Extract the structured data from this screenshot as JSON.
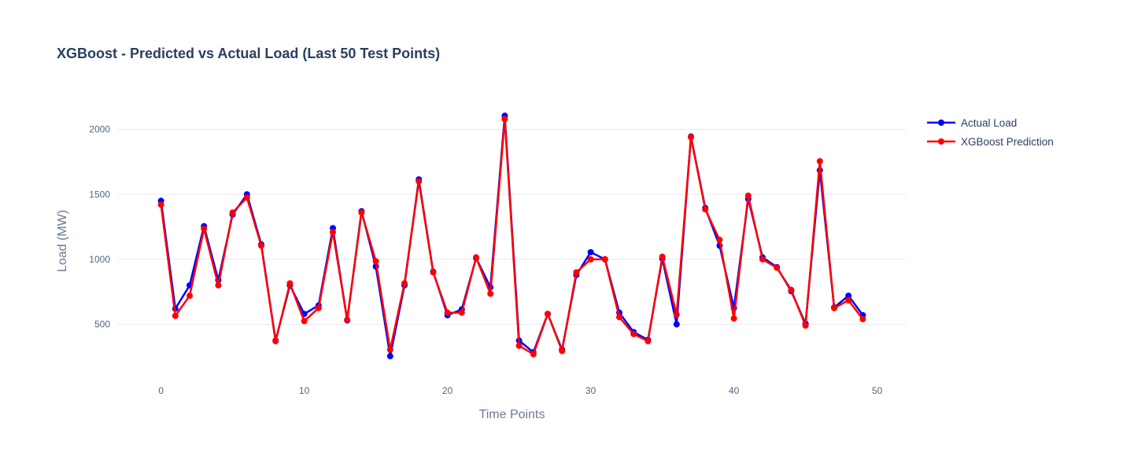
{
  "chart_data": {
    "type": "line",
    "title": "XGBoost - Predicted vs Actual Load (Last 50 Test Points)",
    "xlabel": "Time Points",
    "ylabel": "Load (MW)",
    "xlim": [
      -3,
      52
    ],
    "ylim": [
      80,
      2300
    ],
    "xticks": [
      0,
      10,
      20,
      30,
      40,
      50
    ],
    "yticks": [
      500,
      1000,
      1500,
      2000
    ],
    "grid": "horizontal",
    "legend_position": "top-right, outside plot",
    "x": [
      0,
      1,
      2,
      3,
      4,
      5,
      6,
      7,
      8,
      9,
      10,
      11,
      12,
      13,
      14,
      15,
      16,
      17,
      18,
      19,
      20,
      21,
      22,
      23,
      24,
      25,
      26,
      27,
      28,
      29,
      30,
      31,
      32,
      33,
      34,
      35,
      36,
      37,
      38,
      39,
      40,
      41,
      42,
      43,
      44,
      45,
      46,
      47,
      48,
      49
    ],
    "series": [
      {
        "name": "Actual Load",
        "color": "#0000ff",
        "values": [
          1450,
          620,
          800,
          1255,
          840,
          1345,
          1500,
          1115,
          375,
          800,
          580,
          645,
          1240,
          530,
          1370,
          945,
          255,
          800,
          1615,
          905,
          570,
          615,
          1010,
          785,
          2105,
          375,
          285,
          580,
          305,
          880,
          1055,
          1000,
          590,
          440,
          380,
          1005,
          500,
          1945,
          1395,
          1105,
          625,
          1465,
          1015,
          940,
          755,
          505,
          1685,
          630,
          720,
          570
        ],
        "marker": "circle"
      },
      {
        "name": "XGBoost Prediction",
        "color": "#ff0000",
        "values": [
          1420,
          565,
          720,
          1235,
          800,
          1360,
          1475,
          1105,
          370,
          815,
          525,
          625,
          1210,
          535,
          1360,
          985,
          305,
          815,
          1600,
          900,
          590,
          590,
          1015,
          735,
          2080,
          335,
          270,
          580,
          295,
          900,
          1000,
          1000,
          555,
          425,
          370,
          1020,
          575,
          1940,
          1385,
          1150,
          545,
          1490,
          1000,
          935,
          765,
          490,
          1755,
          625,
          685,
          540
        ],
        "marker": "circle"
      }
    ]
  }
}
